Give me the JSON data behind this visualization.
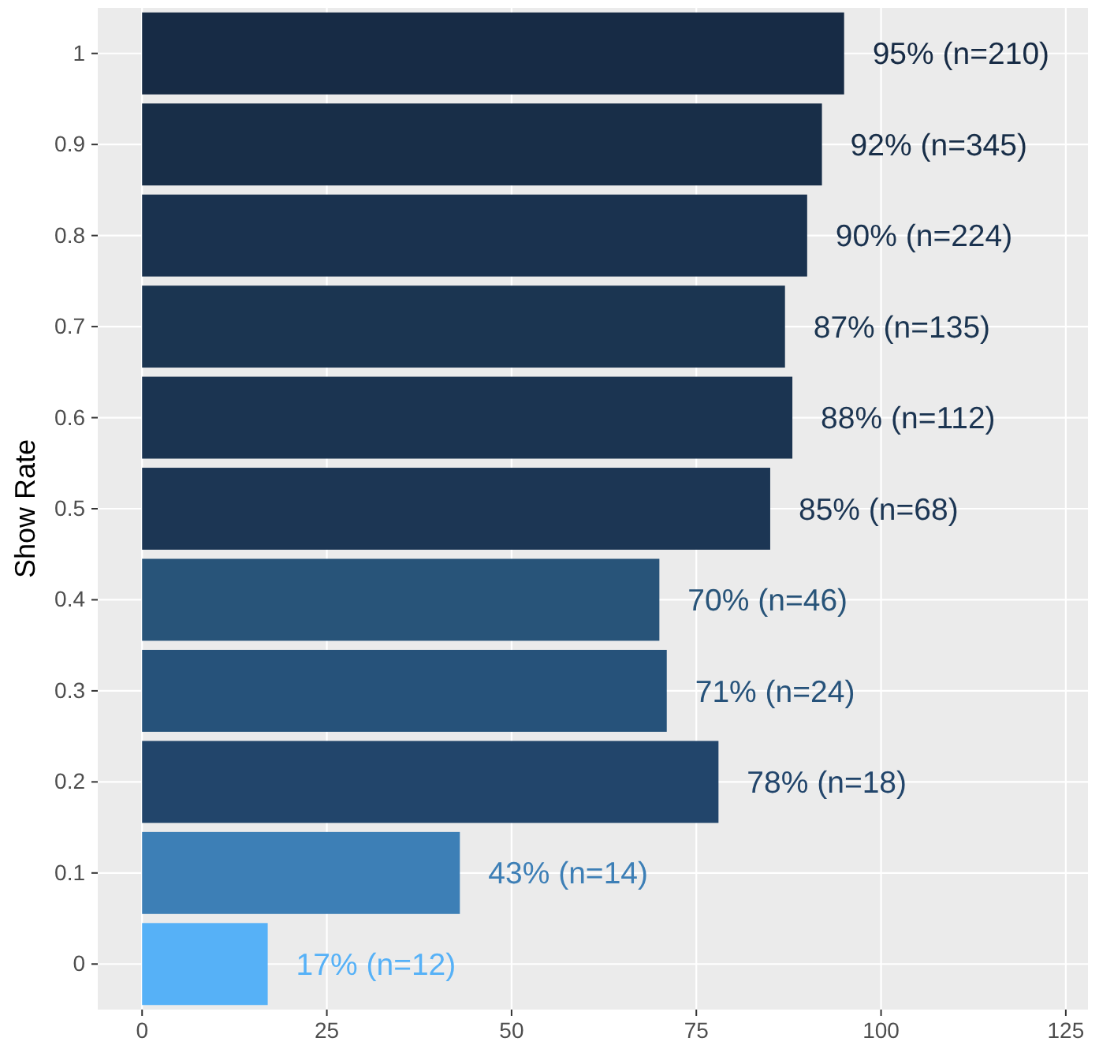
{
  "chart_data": {
    "type": "bar",
    "orientation": "horizontal",
    "ylabel": "Show Rate",
    "categories": [
      "1",
      "0.9",
      "0.8",
      "0.7",
      "0.6",
      "0.5",
      "0.4",
      "0.3",
      "0.2",
      "0.1",
      "0"
    ],
    "values": [
      95,
      92,
      90,
      87,
      88,
      85,
      70,
      71,
      78,
      43,
      17
    ],
    "colors": [
      "#172b45",
      "#182e48",
      "#1a324f",
      "#1b3551",
      "#1b3451",
      "#1c3654",
      "#285479",
      "#26527a",
      "#22456b",
      "#3d7fb6",
      "#56b1f7"
    ],
    "value_labels": [
      "95% (n=210)",
      "92% (n=345)",
      "90% (n=224)",
      "87% (n=135)",
      "88% (n=112)",
      "85% (n=68)",
      "70% (n=46)",
      "71% (n=24)",
      "78% (n=18)",
      "43% (n=14)",
      "17% (n=12)"
    ],
    "xlim": [
      -6,
      128
    ],
    "xticks": [
      0,
      25,
      50,
      75,
      100,
      125
    ],
    "grid": true
  }
}
